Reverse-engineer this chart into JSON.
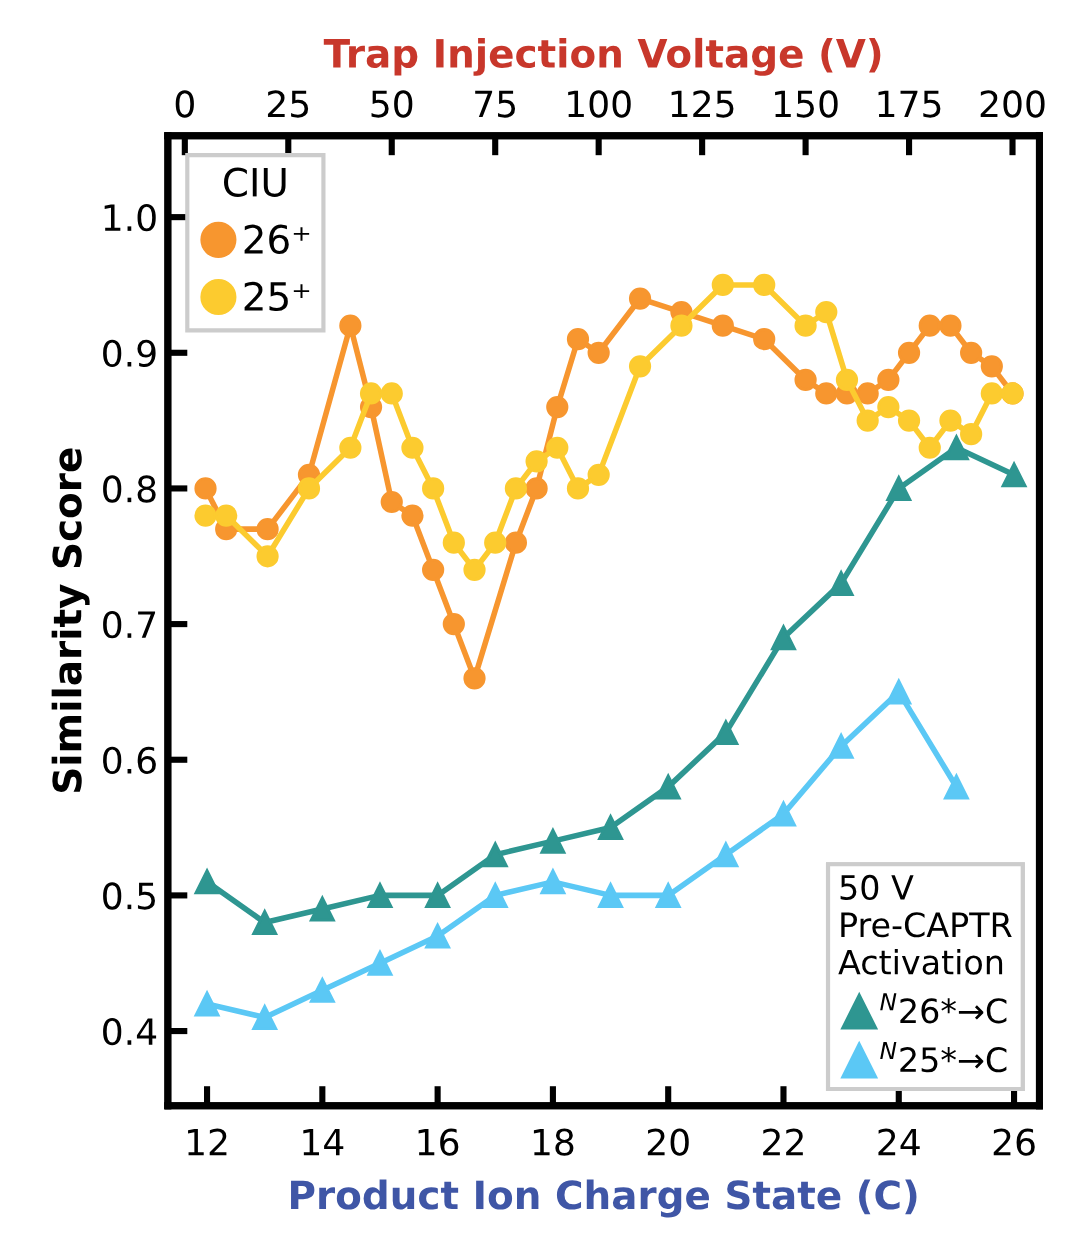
{
  "chart_data": {
    "type": "line",
    "xlabel": "Product Ion Charge State (C)",
    "x2label": "Trap Injection Voltage (V)",
    "ylabel": "Similarity Score",
    "legend_title": [
      "CIU",
      "50 V\nPre-CAPTR\nActivation"
    ],
    "legend": [
      "top left",
      "bottom right"
    ],
    "xlim": [
      11.32,
      26.44
    ],
    "xticks": [
      12,
      14,
      16,
      18,
      20,
      22,
      24,
      26
    ],
    "x2lim": [
      -4.1,
      206.5
    ],
    "x2ticks": [
      0,
      25,
      50,
      75,
      100,
      125,
      150,
      175,
      200
    ],
    "ylim": [
      0.345,
      1.06
    ],
    "yticks": [
      0.4,
      0.5,
      0.6,
      0.7,
      0.8,
      0.9,
      {
        "value": 1.0,
        "label": "1.0"
      }
    ],
    "grid": false,
    "series": [
      {
        "name": "26⁺",
        "color": "#f7962f",
        "axis": "x2",
        "marker": "circle",
        "x": [
          5,
          10,
          20,
          30,
          40,
          45,
          50,
          55,
          60,
          65,
          70,
          80,
          85,
          90,
          95,
          100,
          110,
          120,
          130,
          140,
          150,
          155,
          160,
          165,
          170,
          175,
          180,
          185,
          190,
          195,
          200
        ],
        "values": [
          0.8,
          0.77,
          0.77,
          0.81,
          0.92,
          0.86,
          0.79,
          0.78,
          0.74,
          0.7,
          0.66,
          0.76,
          0.8,
          0.86,
          0.91,
          0.9,
          0.94,
          0.93,
          0.92,
          0.91,
          0.88,
          0.87,
          0.87,
          0.87,
          0.88,
          0.9,
          0.92,
          0.92,
          0.9,
          0.89,
          0.87
        ]
      },
      {
        "name": "25⁺",
        "color": "#fccb2f",
        "axis": "x2",
        "marker": "circle",
        "x": [
          5,
          10,
          20,
          30,
          40,
          45,
          50,
          55,
          60,
          65,
          70,
          75,
          80,
          85,
          90,
          95,
          100,
          110,
          120,
          130,
          140,
          150,
          155,
          160,
          165,
          170,
          175,
          180,
          185,
          190,
          195,
          200
        ],
        "values": [
          0.78,
          0.78,
          0.75,
          0.8,
          0.83,
          0.87,
          0.87,
          0.83,
          0.8,
          0.76,
          0.74,
          0.76,
          0.8,
          0.82,
          0.83,
          0.8,
          0.81,
          0.89,
          0.92,
          0.95,
          0.95,
          0.92,
          0.93,
          0.88,
          0.85,
          0.86,
          0.85,
          0.83,
          0.85,
          0.84,
          0.87,
          0.87
        ]
      },
      {
        "name": "$^{N}$26*→C",
        "color": "#2e9691",
        "marker": "triangle",
        "x": [
          12,
          13,
          14,
          15,
          16,
          17,
          18,
          19,
          20,
          21,
          22,
          23,
          24,
          25,
          26
        ],
        "values": [
          0.51,
          0.48,
          0.49,
          0.5,
          0.5,
          0.53,
          0.54,
          0.55,
          0.58,
          0.62,
          0.69,
          0.73,
          0.8,
          0.83,
          0.81
        ]
      },
      {
        "name": "$^{N}$25*→C",
        "color": "#5bc8f5",
        "marker": "triangle",
        "x": [
          12,
          13,
          14,
          15,
          16,
          17,
          18,
          19,
          20,
          21,
          22,
          23,
          24,
          25
        ],
        "values": [
          0.42,
          0.41,
          0.43,
          0.45,
          0.47,
          0.5,
          0.51,
          0.5,
          0.5,
          0.53,
          0.56,
          0.61,
          0.65,
          0.58
        ]
      }
    ]
  }
}
